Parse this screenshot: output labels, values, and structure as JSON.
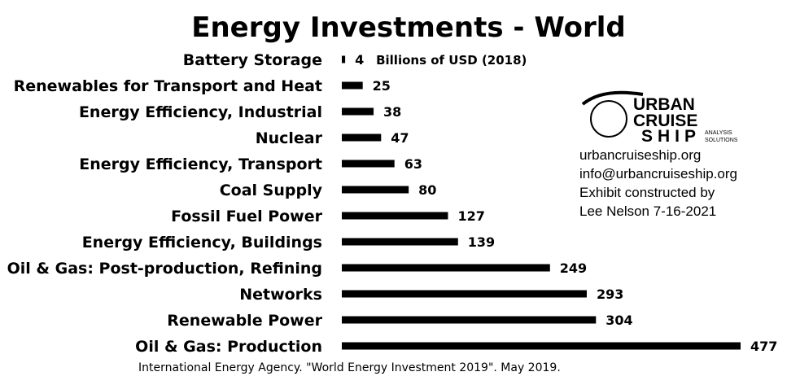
{
  "chart_data": {
    "type": "bar",
    "orientation": "horizontal",
    "title": "Energy Investments - World",
    "units_label": "Billions of USD (2018)",
    "categories": [
      "Battery Storage",
      "Renewables for Transport and Heat",
      "Energy Efficiency, Industrial",
      "Nuclear",
      "Energy Efficiency, Transport",
      "Coal Supply",
      "Fossil Fuel Power",
      "Energy Efficiency, Buildings",
      "Oil & Gas: Post-production, Refining",
      "Networks",
      "Renewable Power",
      "Oil & Gas: Production"
    ],
    "values": [
      4,
      25,
      38,
      47,
      63,
      80,
      127,
      139,
      249,
      293,
      304,
      477
    ],
    "xlim": [
      0,
      477
    ],
    "grid": false,
    "legend": "none",
    "bar_color": "#000000"
  },
  "source": "International Energy Agency. \"World Energy Investment 2019\". May 2019.",
  "credit": {
    "logo_text": [
      "URBAN",
      "CRUISE",
      "SHIP"
    ],
    "logo_tag": [
      "ANALYSIS",
      "SOLUTIONS"
    ],
    "lines": [
      "urbancruiseship.org",
      "info@urbancruiseship.org",
      "Exhibit constructed by",
      "Lee Nelson 7-16-2021"
    ]
  }
}
